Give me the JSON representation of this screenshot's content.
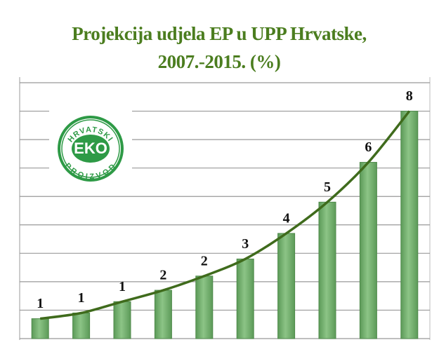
{
  "chart_data": {
    "type": "bar",
    "title": "Projekcija udjela EP u UPP Hrvatske, 2007.-2015. (%)",
    "categories": [
      null,
      null,
      null,
      null,
      null,
      null,
      null,
      null,
      null,
      null
    ],
    "values": [
      0.7,
      0.9,
      1.3,
      1.7,
      2.2,
      2.8,
      3.7,
      4.8,
      6.2,
      8.0
    ],
    "value_labels": [
      "1",
      "1",
      "1",
      "2",
      "2",
      "3",
      "4",
      "5",
      "6",
      "8"
    ],
    "color": "#6fae6a",
    "trend_color": "#3f6b1c",
    "ylim": [
      0,
      9
    ],
    "yticks": [
      0,
      1,
      2,
      3,
      4,
      5,
      6,
      7,
      8,
      9
    ],
    "grid": true
  },
  "logo": {
    "center": "EKO",
    "top": "HRVATSKI",
    "bottom": "PROIZVOD"
  }
}
